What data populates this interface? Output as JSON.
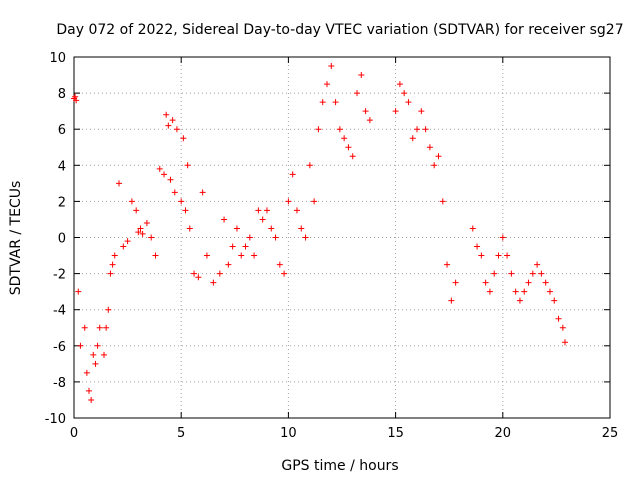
{
  "chart_data": {
    "type": "scatter",
    "title": "Day 072 of 2022, Sidereal Day-to-day VTEC variation (SDTVAR) for receiver sg27",
    "xlabel": "GPS time / hours",
    "ylabel": "SDTVAR / TECUs",
    "xlim": [
      0,
      25
    ],
    "ylim": [
      -10,
      10
    ],
    "xticks": [
      0,
      5,
      10,
      15,
      20,
      25
    ],
    "yticks": [
      -10,
      -8,
      -6,
      -4,
      -2,
      0,
      2,
      4,
      6,
      8,
      10
    ],
    "grid": true,
    "marker": "+",
    "color": "#ff0000",
    "series": [
      {
        "name": "sg27",
        "x": [
          0.0,
          0.05,
          0.1,
          0.2,
          0.3,
          0.5,
          0.6,
          0.7,
          0.8,
          0.9,
          1.0,
          1.1,
          1.2,
          1.4,
          1.5,
          1.6,
          1.7,
          1.8,
          1.9,
          2.1,
          2.3,
          2.5,
          2.7,
          2.9,
          3.0,
          3.1,
          3.2,
          3.4,
          3.6,
          3.8,
          4.0,
          4.2,
          4.3,
          4.4,
          4.5,
          4.6,
          4.7,
          4.8,
          5.0,
          5.1,
          5.2,
          5.3,
          5.4,
          5.6,
          5.8,
          6.0,
          6.2,
          6.5,
          6.8,
          7.0,
          7.2,
          7.4,
          7.6,
          7.8,
          8.0,
          8.2,
          8.4,
          8.6,
          8.8,
          9.0,
          9.2,
          9.4,
          9.6,
          9.8,
          10.0,
          10.2,
          10.4,
          10.6,
          10.8,
          11.0,
          11.2,
          11.4,
          11.6,
          11.8,
          12.0,
          12.2,
          12.4,
          12.6,
          12.8,
          13.0,
          13.2,
          13.4,
          13.6,
          13.8,
          15.0,
          15.2,
          15.4,
          15.6,
          15.8,
          16.0,
          16.2,
          16.4,
          16.6,
          16.8,
          17.0,
          17.2,
          17.4,
          17.6,
          17.8,
          18.6,
          18.8,
          19.0,
          19.2,
          19.4,
          19.6,
          19.8,
          20.0,
          20.2,
          20.4,
          20.6,
          20.8,
          21.0,
          21.2,
          21.4,
          21.6,
          21.8,
          22.0,
          22.2,
          22.4,
          22.6,
          22.8,
          22.9
        ],
        "y": [
          7.7,
          7.8,
          7.6,
          -3.0,
          -6.0,
          -5.0,
          -7.5,
          -8.5,
          -9.0,
          -6.5,
          -7.0,
          -6.0,
          -5.0,
          -6.5,
          -5.0,
          -4.0,
          -2.0,
          -1.5,
          -1.0,
          3.0,
          -0.5,
          -0.2,
          2.0,
          1.5,
          0.3,
          0.5,
          0.2,
          0.8,
          0.0,
          -1.0,
          3.8,
          3.5,
          6.8,
          6.2,
          3.2,
          6.5,
          2.5,
          6.0,
          2.0,
          5.5,
          1.5,
          4.0,
          0.5,
          -2.0,
          -2.2,
          2.5,
          -1.0,
          -2.5,
          -2.0,
          1.0,
          -1.5,
          -0.5,
          0.5,
          -1.0,
          -0.5,
          0.0,
          -1.0,
          1.5,
          1.0,
          1.5,
          0.5,
          0.0,
          -1.5,
          -2.0,
          2.0,
          3.5,
          1.5,
          0.5,
          0.0,
          4.0,
          2.0,
          6.0,
          7.5,
          8.5,
          9.5,
          7.5,
          6.0,
          5.5,
          5.0,
          4.5,
          8.0,
          9.0,
          7.0,
          6.5,
          7.0,
          8.5,
          8.0,
          7.5,
          5.5,
          6.0,
          7.0,
          6.0,
          5.0,
          4.0,
          4.5,
          2.0,
          -1.5,
          -3.5,
          -2.5,
          0.5,
          -0.5,
          -1.0,
          -2.5,
          -3.0,
          -2.0,
          -1.0,
          0.0,
          -1.0,
          -2.0,
          -3.0,
          -3.5,
          -3.0,
          -2.5,
          -2.0,
          -1.5,
          -2.0,
          -2.5,
          -3.0,
          -3.5,
          -4.5,
          -5.0,
          -5.8
        ]
      }
    ]
  }
}
